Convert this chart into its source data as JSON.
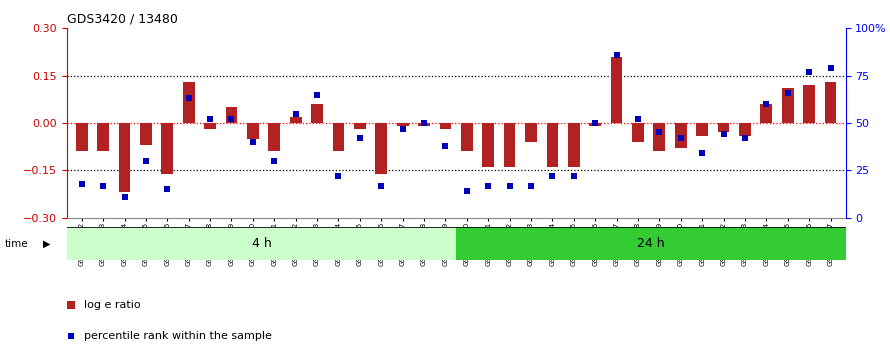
{
  "title": "GDS3420 / 13480",
  "samples": [
    "GSM182402",
    "GSM182403",
    "GSM182404",
    "GSM182405",
    "GSM182406",
    "GSM182407",
    "GSM182408",
    "GSM182409",
    "GSM182410",
    "GSM182411",
    "GSM182412",
    "GSM182413",
    "GSM182414",
    "GSM182415",
    "GSM182416",
    "GSM182417",
    "GSM182418",
    "GSM182419",
    "GSM182420",
    "GSM182421",
    "GSM182422",
    "GSM182423",
    "GSM182424",
    "GSM182425",
    "GSM182426",
    "GSM182427",
    "GSM182428",
    "GSM182429",
    "GSM182430",
    "GSM182431",
    "GSM182432",
    "GSM182433",
    "GSM182434",
    "GSM182435",
    "GSM182436",
    "GSM182437"
  ],
  "log_ratio": [
    -0.09,
    -0.09,
    -0.22,
    -0.07,
    -0.16,
    0.13,
    -0.02,
    0.05,
    -0.05,
    -0.09,
    0.02,
    0.06,
    -0.09,
    -0.02,
    -0.16,
    -0.01,
    -0.01,
    -0.02,
    -0.09,
    -0.14,
    -0.14,
    -0.06,
    -0.14,
    -0.14,
    -0.01,
    0.21,
    -0.06,
    -0.09,
    -0.08,
    -0.04,
    -0.03,
    -0.04,
    0.06,
    0.11,
    0.12,
    0.13
  ],
  "percentile": [
    18,
    17,
    11,
    30,
    15,
    63,
    52,
    52,
    40,
    30,
    55,
    65,
    22,
    42,
    17,
    47,
    50,
    38,
    14,
    17,
    17,
    17,
    22,
    22,
    50,
    86,
    52,
    45,
    42,
    34,
    44,
    42,
    60,
    66,
    77,
    79
  ],
  "group1_count": 18,
  "group2_count": 18,
  "group1_label": "4 h",
  "group2_label": "24 h",
  "ylim_left": [
    -0.3,
    0.3
  ],
  "ylim_right": [
    0,
    100
  ],
  "yticks_left": [
    -0.3,
    -0.15,
    0.0,
    0.15,
    0.3
  ],
  "yticks_right": [
    0,
    25,
    50,
    75,
    100
  ],
  "ytick_labels_right": [
    "0",
    "25",
    "50",
    "75",
    "100%"
  ],
  "bar_color": "#B22222",
  "dot_color": "#0000BB",
  "group1_bg": "#CCFFCC",
  "group2_bg": "#33CC33",
  "legend_ratio_label": "log e ratio",
  "legend_pct_label": "percentile rank within the sample"
}
